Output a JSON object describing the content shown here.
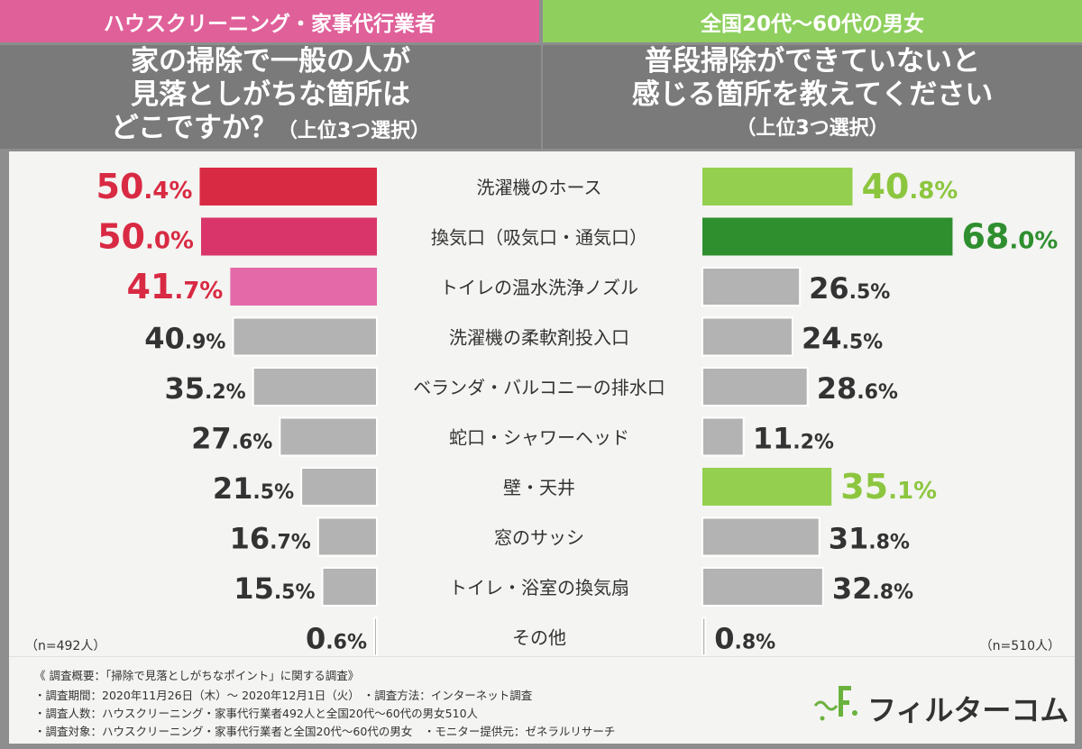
{
  "header": {
    "left": "ハウスクリーニング・家事代行業者",
    "right": "全国20代〜60代の男女"
  },
  "questions": {
    "left": [
      "家の掃除で一般の人が",
      "見落としがちな箇所は",
      "どこですか？"
    ],
    "left_sub": "（上位3つ選択）",
    "right": [
      "普段掃除ができていないと",
      "感じる箇所を教えてください"
    ],
    "right_sub": "（上位3つ選択）"
  },
  "chart_data": {
    "type": "bar",
    "categories": [
      "洗濯機のホース",
      "換気口（吸気口・通気口）",
      "トイレの温水洗浄ノズル",
      "洗濯機の柔軟剤投入口",
      "ベランダ・バルコニーの排水口",
      "蛇口・シャワーヘッド",
      "壁・天井",
      "窓のサッシ",
      "トイレ・浴室の換気扇",
      "その他"
    ],
    "series": [
      {
        "values": [
          50.4,
          50.0,
          41.7,
          40.9,
          35.2,
          27.6,
          21.5,
          16.7,
          15.5,
          0.6
        ],
        "colors": [
          "#d92a43",
          "#d9356a",
          "#e469a8",
          "#b3b3b3",
          "#b3b3b3",
          "#b3b3b3",
          "#b3b3b3",
          "#b3b3b3",
          "#b3b3b3",
          "#b3b3b3"
        ],
        "label_colors": [
          "#d92a43",
          "#d92a43",
          "#d92a43",
          "#333333",
          "#333333",
          "#333333",
          "#333333",
          "#333333",
          "#333333",
          "#333333"
        ],
        "n_label": "（n=492人）"
      },
      {
        "values": [
          40.8,
          68.0,
          26.5,
          24.5,
          28.6,
          11.2,
          35.1,
          31.8,
          32.8,
          0.8
        ],
        "colors": [
          "#94cf4f",
          "#2f8f2f",
          "#b3b3b3",
          "#b3b3b3",
          "#b3b3b3",
          "#b3b3b3",
          "#94cf4f",
          "#b3b3b3",
          "#b3b3b3",
          "#b3b3b3"
        ],
        "label_colors": [
          "#8cc63f",
          "#2f8f2f",
          "#333333",
          "#333333",
          "#333333",
          "#333333",
          "#8cc63f",
          "#333333",
          "#333333",
          "#333333"
        ],
        "n_label": "（n=510人）"
      }
    ],
    "value_suffix": "%"
  },
  "footer": {
    "line0": "《 調査概要：「掃除で見落としがちなポイント」に関する調査》",
    "line1": "・調査期間：2020年11月26日（木）〜 2020年12月1日（火） ・調査方法：インターネット調査",
    "line2": "・調査人数：ハウスクリーニング・家事代行業者492人と全国20代〜60代の男女510人",
    "line3": "・調査対象：ハウスクリーニング・家事代行業者と全国20代〜60代の男女　・モニター提供元：ゼネラルリサーチ",
    "logo": "フィルターコム"
  },
  "colors": {
    "logo_green": "#6ab23e",
    "logo_dark": "#333333"
  }
}
